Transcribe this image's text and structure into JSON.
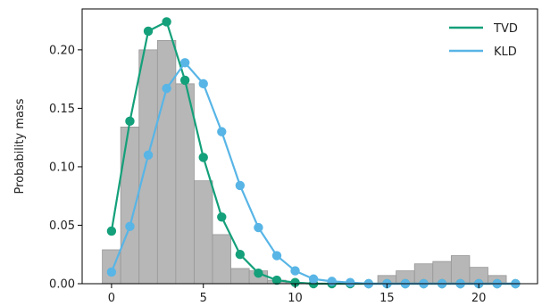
{
  "chart_data": {
    "type": "bar",
    "title": "",
    "xlabel": "",
    "ylabel": "Probability mass",
    "xlim": [
      -1.6,
      23.2
    ],
    "ylim": [
      0,
      0.235
    ],
    "xticks": [
      0,
      5,
      10,
      15,
      20
    ],
    "xtick_labels": [
      "0",
      "5",
      "10",
      "15",
      "20"
    ],
    "yticks": [
      0,
      0.05,
      0.1,
      0.15,
      0.2
    ],
    "ytick_labels": [
      "0.00",
      "0.05",
      "0.10",
      "0.15",
      "0.20"
    ],
    "grid": false,
    "legend": {
      "placement": "top-right"
    },
    "histogram": {
      "bin_width": 1,
      "bin_starts": [
        -0.5,
        0.5,
        1.5,
        2.5,
        3.5,
        4.5,
        5.5,
        6.5,
        7.5,
        8.5,
        9.5,
        10.5,
        11.5,
        12.5,
        13.5,
        14.5,
        15.5,
        16.5,
        17.5,
        18.5,
        19.5,
        20.5
      ],
      "values": [
        0.029,
        0.134,
        0.2,
        0.208,
        0.171,
        0.088,
        0.042,
        0.013,
        0.011,
        0.003,
        0.001,
        0.0,
        0.0,
        0.0,
        0.0,
        0.007,
        0.011,
        0.017,
        0.019,
        0.024,
        0.014,
        0.007
      ],
      "color": "#b7b7b7",
      "edge_color": "#969696"
    },
    "series": [
      {
        "name": "TVD",
        "type": "line",
        "color": "#14a07a",
        "x": [
          0,
          1,
          2,
          3,
          4,
          5,
          6,
          7,
          8,
          9,
          10,
          11,
          12,
          13,
          14,
          15,
          16,
          17,
          18,
          19,
          20,
          21,
          22
        ],
        "y": [
          0.045,
          0.139,
          0.216,
          0.224,
          0.174,
          0.108,
          0.057,
          0.025,
          0.009,
          0.003,
          0.001,
          0.0,
          0.0,
          0.0,
          0.0,
          0.0,
          0.0,
          0.0,
          0.0,
          0.0,
          0.0,
          0.0,
          0.0
        ]
      },
      {
        "name": "KLD",
        "type": "line",
        "color": "#58b5e6",
        "x": [
          0,
          1,
          2,
          3,
          4,
          5,
          6,
          7,
          8,
          9,
          10,
          11,
          12,
          13,
          14,
          15,
          16,
          17,
          18,
          19,
          20,
          21,
          22
        ],
        "y": [
          0.01,
          0.049,
          0.11,
          0.167,
          0.189,
          0.171,
          0.13,
          0.084,
          0.048,
          0.024,
          0.011,
          0.004,
          0.002,
          0.001,
          0.0,
          0.0,
          0.0,
          0.0,
          0.0,
          0.0,
          0.0,
          0.0,
          0.0
        ]
      }
    ]
  }
}
